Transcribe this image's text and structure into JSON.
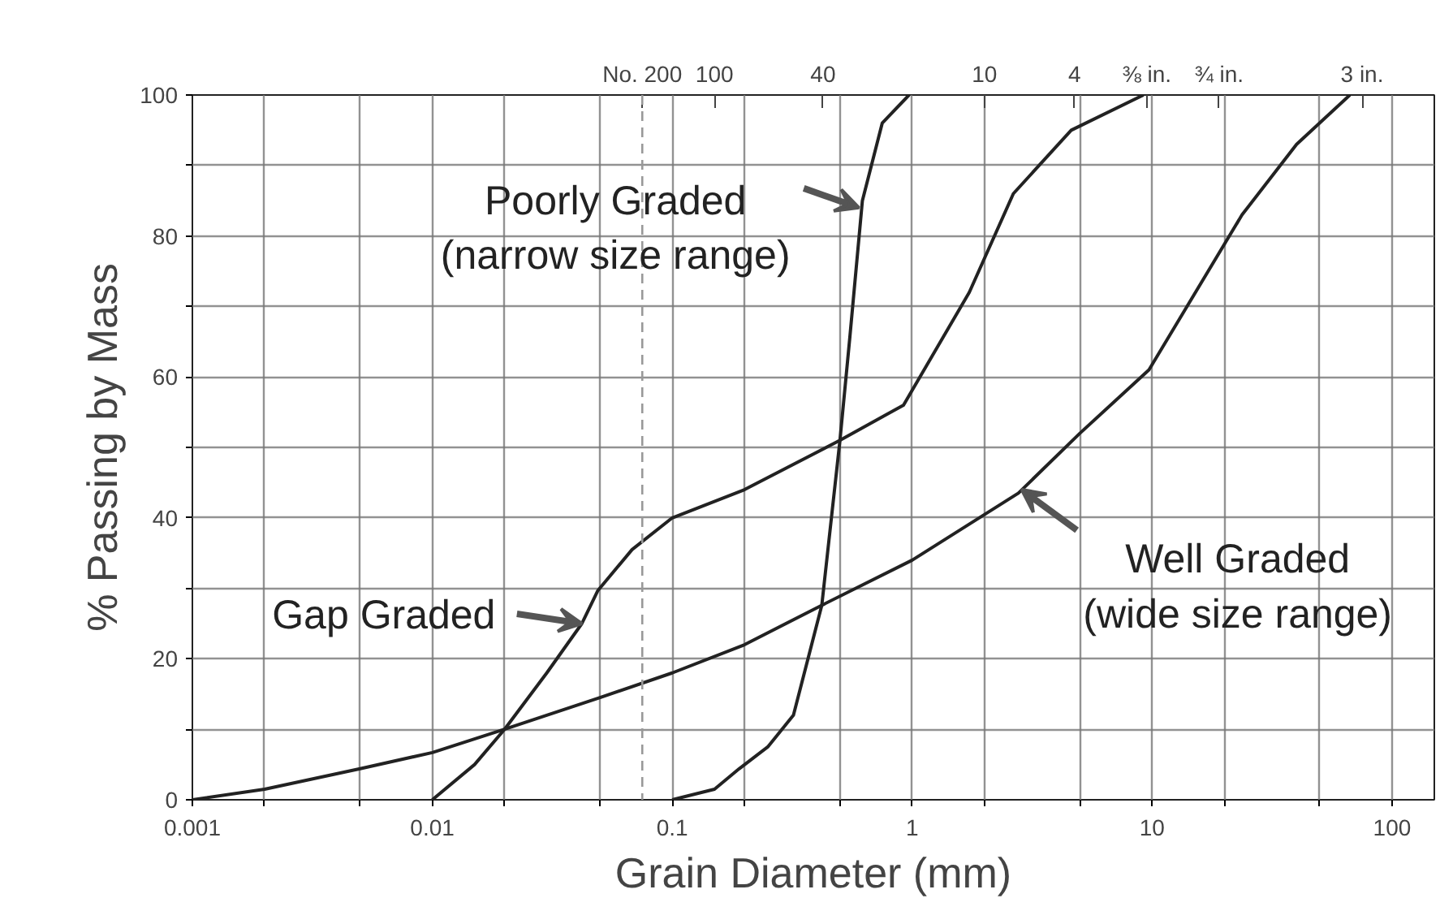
{
  "chart_data": {
    "type": "line",
    "xlabel": "Grain Diameter (mm)",
    "ylabel": "% Passing by Mass",
    "log": "x",
    "grid": true,
    "marker": "none",
    "line_style": "solid",
    "xlim": [
      0.001,
      150
    ],
    "ylim": [
      0,
      100
    ],
    "xticks": [
      {
        "value": 0.001,
        "label": "0.001"
      },
      {
        "value": 0.002,
        "label": null
      },
      {
        "value": 0.005,
        "label": null
      },
      {
        "value": 0.01,
        "label": "0.01"
      },
      {
        "value": 0.02,
        "label": null
      },
      {
        "value": 0.05,
        "label": null
      },
      {
        "value": 0.1,
        "label": "0.1"
      },
      {
        "value": 0.2,
        "label": null
      },
      {
        "value": 0.5,
        "label": null
      },
      {
        "value": 1,
        "label": "1"
      },
      {
        "value": 2,
        "label": null
      },
      {
        "value": 5,
        "label": null
      },
      {
        "value": 10,
        "label": "10"
      },
      {
        "value": 20,
        "label": null
      },
      {
        "value": 50,
        "label": null
      },
      {
        "value": 100,
        "label": "100"
      }
    ],
    "yticks": [
      0,
      {
        "value": 10,
        "label": null
      },
      20,
      {
        "value": 30,
        "label": null
      },
      40,
      {
        "value": 50,
        "label": null
      },
      60,
      {
        "value": 70,
        "label": null
      },
      80,
      {
        "value": 90,
        "label": null
      },
      100
    ],
    "ref_lines": [
      {
        "axis": "x",
        "value": 0.075,
        "label": null,
        "line_style": "dashed",
        "color": "#999999"
      }
    ],
    "series": [
      {
        "color": "#222222",
        "x": [
          0.001,
          0.002,
          0.005,
          0.01,
          0.02,
          0.05,
          0.1,
          0.2,
          0.42,
          1,
          2.77,
          5,
          9.7,
          23.7,
          40,
          66.7
        ],
        "values": [
          0,
          1.5,
          4.4,
          6.7,
          10,
          14.5,
          18,
          22,
          27.6,
          34,
          43.5,
          52,
          61,
          83,
          93,
          100
        ]
      },
      {
        "color": "#222222",
        "x": [
          0.01,
          0.015,
          0.02,
          0.03,
          0.042,
          0.049,
          0.068,
          0.1,
          0.2,
          0.5,
          0.92,
          1.73,
          2.64,
          4.6,
          9.2
        ],
        "values": [
          0,
          5,
          10,
          18,
          25,
          29.7,
          35.5,
          40,
          44,
          51,
          56,
          72,
          86,
          95,
          100
        ]
      },
      {
        "color": "#222222",
        "x": [
          0.1,
          0.15,
          0.19,
          0.25,
          0.32,
          0.42,
          0.5,
          0.55,
          0.62,
          0.75,
          0.97
        ],
        "values": [
          0,
          1.5,
          4.4,
          7.5,
          12,
          27.6,
          51,
          65.7,
          85,
          96,
          100
        ]
      }
    ],
    "annotations": [
      {
        "text": "Poorly Graded\n(narrow size range)",
        "x": 0.6,
        "y": 84
      },
      {
        "text": "Gap Graded",
        "x": 0.042,
        "y": 25
      },
      {
        "text": "Well Graded\n(wide size range)",
        "x": 2.86,
        "y": 44
      },
      "No. 200",
      "100",
      "40",
      "10",
      "4",
      "⅜ in.",
      "¾ in.",
      "3 in."
    ]
  }
}
